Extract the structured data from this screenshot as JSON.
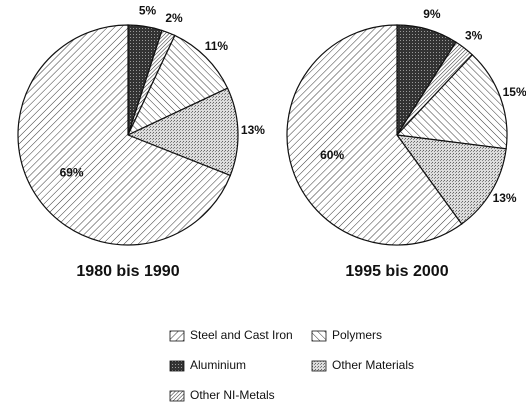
{
  "chart_data": [
    {
      "type": "pie",
      "title": "1980 bis 1990",
      "categories": [
        "Aluminium",
        "Other NI-Metals",
        "Polymers",
        "Other Materials",
        "Steel and Cast Iron"
      ],
      "values": [
        5,
        2,
        11,
        13,
        69
      ],
      "value_labels": [
        "5%",
        "2%",
        "11%",
        "13%",
        "69%"
      ]
    },
    {
      "type": "pie",
      "title": "1995 bis 2000",
      "categories": [
        "Aluminium",
        "Other NI-Metals",
        "Polymers",
        "Other Materials",
        "Steel and Cast Iron"
      ],
      "values": [
        9,
        3,
        15,
        13,
        60
      ],
      "value_labels": [
        "9%",
        "3%",
        "15%",
        "13%",
        "60%"
      ]
    }
  ]
}
